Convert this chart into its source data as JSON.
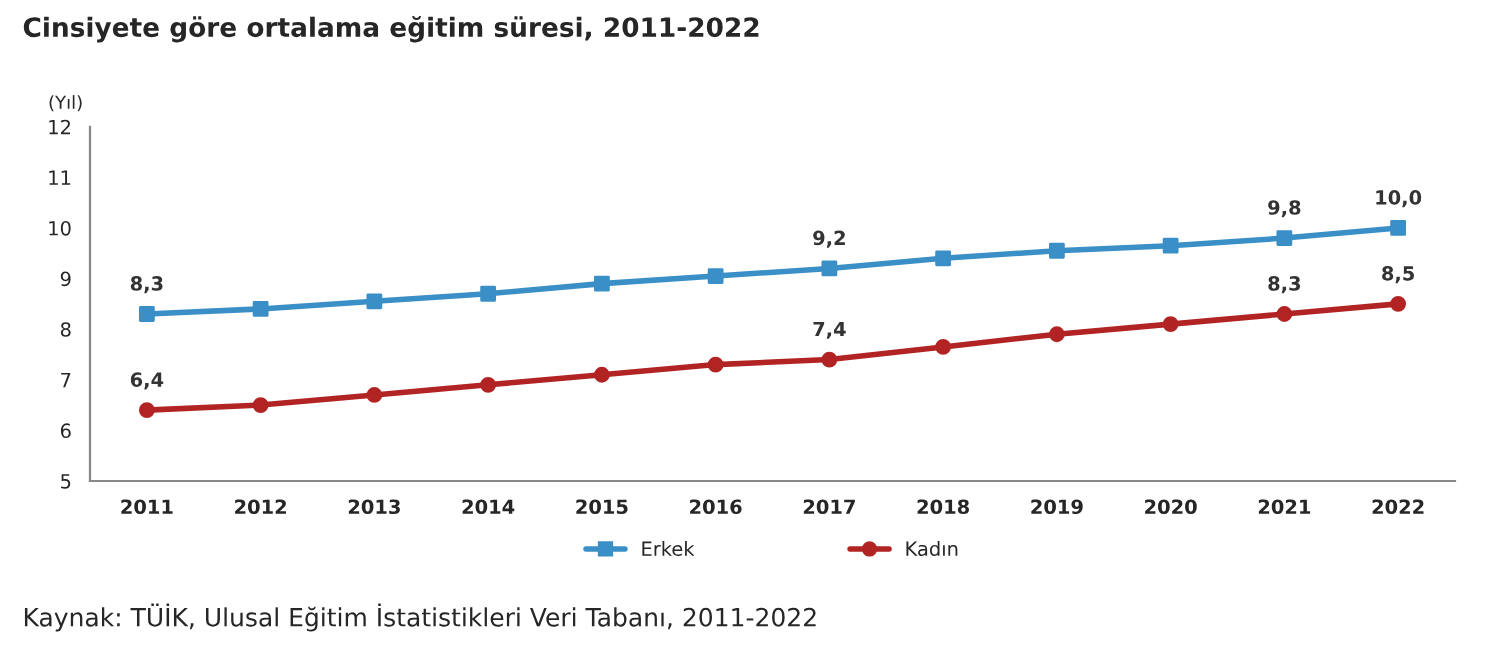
{
  "chart_data": {
    "type": "line",
    "title": "Cinsiyete göre ortalama eğitim süresi, 2011-2022",
    "ylabel": "(Yıl)",
    "categories": [
      "2011",
      "2012",
      "2013",
      "2014",
      "2015",
      "2016",
      "2017",
      "2018",
      "2019",
      "2020",
      "2021",
      "2022"
    ],
    "series": [
      {
        "name": "Erkek",
        "color": "#3a8fc7",
        "marker": "square",
        "values": [
          8.3,
          8.4,
          8.55,
          8.7,
          8.9,
          9.05,
          9.2,
          9.4,
          9.55,
          9.65,
          9.8,
          10.0
        ],
        "value_labels": [
          "8,3",
          null,
          null,
          null,
          null,
          null,
          "9,2",
          null,
          null,
          null,
          "9,8",
          "10,0"
        ]
      },
      {
        "name": "Kadın",
        "color": "#b22424",
        "marker": "circle",
        "values": [
          6.4,
          6.5,
          6.7,
          6.9,
          7.1,
          7.3,
          7.4,
          7.65,
          7.9,
          8.1,
          8.3,
          8.5
        ],
        "value_labels": [
          "6,4",
          null,
          null,
          null,
          null,
          null,
          "7,4",
          null,
          null,
          null,
          "8,3",
          "8,5"
        ]
      }
    ],
    "ylim": [
      5,
      12
    ],
    "yticks": [
      5,
      6,
      7,
      8,
      9,
      10,
      11,
      12
    ],
    "legend": "bottom",
    "annotations": [
      "Kaynak: TÜİK, Ulusal Eğitim İstatistikleri Veri Tabanı, 2011-2022"
    ]
  }
}
